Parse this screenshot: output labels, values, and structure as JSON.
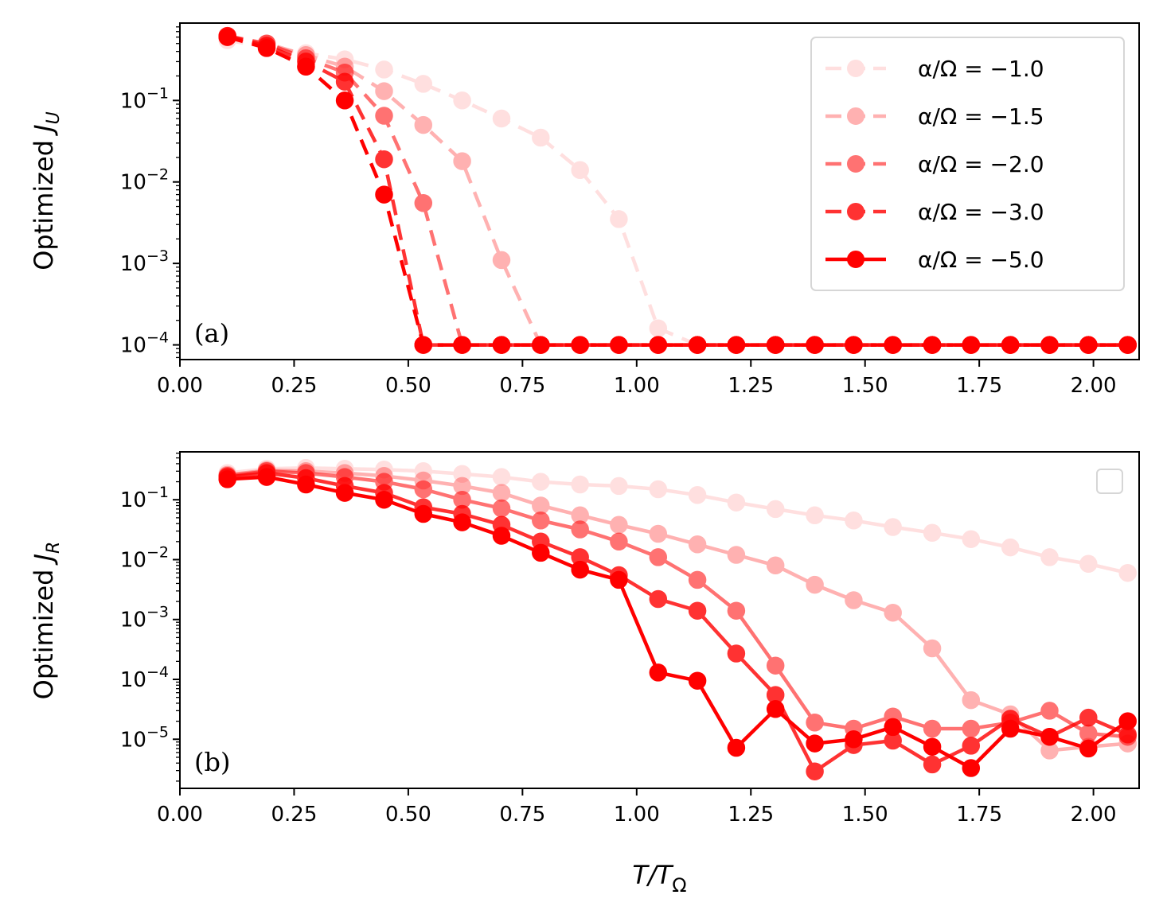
{
  "chart_data": [
    {
      "type": "line",
      "panel_label": "(a)",
      "ylabel": "Optimized",
      "ylabel_sub": "U",
      "xlabel": "",
      "xlim": [
        0.0,
        2.1
      ],
      "ylim_log10": [
        -4.18,
        -0.05
      ],
      "y_scale": "log",
      "x_ticks": [
        "0.00",
        "0.25",
        "0.50",
        "0.75",
        "1.00",
        "1.25",
        "1.50",
        "1.75",
        "2.00"
      ],
      "y_ticks": [
        {
          "value": -4,
          "base": "10",
          "exp": "−4"
        },
        {
          "value": -3,
          "base": "10",
          "exp": "−3"
        },
        {
          "value": -2,
          "base": "10",
          "exp": "−2"
        },
        {
          "value": -1,
          "base": "10",
          "exp": "−1"
        }
      ],
      "linestyle": "dashed",
      "legend": {
        "placement": "top-right"
      },
      "x": [
        0.104,
        0.19,
        0.276,
        0.361,
        0.447,
        0.533,
        0.618,
        0.704,
        0.79,
        0.876,
        0.961,
        1.047,
        1.133,
        1.218,
        1.304,
        1.39,
        1.475,
        1.561,
        1.647,
        1.732,
        1.818,
        1.904,
        1.989,
        2.075
      ],
      "series": [
        {
          "name": "α/Ω = −1.0",
          "color": "#ff0000",
          "opacity": 0.12,
          "values": [
            0.55,
            0.45,
            0.38,
            0.32,
            0.24,
            0.16,
            0.1,
            0.06,
            0.035,
            0.014,
            0.0035,
            0.00016,
            0.0001,
            0.0001,
            0.0001,
            0.0001,
            0.0001,
            0.0001,
            0.0001,
            0.0001,
            0.0001,
            0.0001,
            0.0001,
            0.0001
          ]
        },
        {
          "name": "α/Ω = −1.5",
          "color": "#ff0000",
          "opacity": 0.3,
          "values": [
            0.6,
            0.5,
            0.36,
            0.26,
            0.13,
            0.05,
            0.018,
            0.0011,
            0.0001,
            0.0001,
            0.0001,
            0.0001,
            0.0001,
            0.0001,
            0.0001,
            0.0001,
            0.0001,
            0.0001,
            0.0001,
            0.0001,
            0.0001,
            0.0001,
            0.0001,
            0.0001
          ]
        },
        {
          "name": "α/Ω = −2.0",
          "color": "#ff0000",
          "opacity": 0.55,
          "values": [
            0.62,
            0.5,
            0.33,
            0.22,
            0.065,
            0.0055,
            0.0001,
            0.0001,
            0.0001,
            0.0001,
            0.0001,
            0.0001,
            0.0001,
            0.0001,
            0.0001,
            0.0001,
            0.0001,
            0.0001,
            0.0001,
            0.0001,
            0.0001,
            0.0001,
            0.0001,
            0.0001
          ]
        },
        {
          "name": "α/Ω = −3.0",
          "color": "#ff0000",
          "opacity": 0.8,
          "values": [
            0.62,
            0.47,
            0.3,
            0.17,
            0.019,
            0.0001,
            0.0001,
            0.0001,
            0.0001,
            0.0001,
            0.0001,
            0.0001,
            0.0001,
            0.0001,
            0.0001,
            0.0001,
            0.0001,
            0.0001,
            0.0001,
            0.0001,
            0.0001,
            0.0001,
            0.0001,
            0.0001
          ]
        },
        {
          "name": "α/Ω = −5.0",
          "color": "#ff0000",
          "opacity": 1.0,
          "values": [
            0.6,
            0.44,
            0.26,
            0.1,
            0.007,
            0.0001,
            0.0001,
            0.0001,
            0.0001,
            0.0001,
            0.0001,
            0.0001,
            0.0001,
            0.0001,
            0.0001,
            0.0001,
            0.0001,
            0.0001,
            0.0001,
            0.0001,
            0.0001,
            0.0001,
            0.0001,
            0.0001
          ]
        }
      ]
    },
    {
      "type": "line",
      "panel_label": "(b)",
      "ylabel": "Optimized",
      "ylabel_sub": "R",
      "xlabel": "T/T",
      "xlabel_sub": "Ω",
      "xlim": [
        0.0,
        2.1
      ],
      "ylim_log10": [
        -5.82,
        -0.2
      ],
      "y_scale": "log",
      "x_ticks": [
        "0.00",
        "0.25",
        "0.50",
        "0.75",
        "1.00",
        "1.25",
        "1.50",
        "1.75",
        "2.00"
      ],
      "y_ticks": [
        {
          "value": -5,
          "base": "10",
          "exp": "−5"
        },
        {
          "value": -4,
          "base": "10",
          "exp": "−4"
        },
        {
          "value": -3,
          "base": "10",
          "exp": "−3"
        },
        {
          "value": -2,
          "base": "10",
          "exp": "−2"
        },
        {
          "value": -1,
          "base": "10",
          "exp": "−1"
        }
      ],
      "linestyle": "solid",
      "legend": {
        "placement": "top-right",
        "empty": true
      },
      "x": [
        0.104,
        0.19,
        0.276,
        0.361,
        0.447,
        0.533,
        0.618,
        0.704,
        0.79,
        0.876,
        0.961,
        1.047,
        1.133,
        1.218,
        1.304,
        1.39,
        1.475,
        1.561,
        1.647,
        1.732,
        1.818,
        1.904,
        1.989,
        2.075
      ],
      "series": [
        {
          "name": "α/Ω = −1.0",
          "color": "#ff0000",
          "opacity": 0.12,
          "values": [
            0.28,
            0.33,
            0.34,
            0.33,
            0.32,
            0.3,
            0.27,
            0.24,
            0.2,
            0.18,
            0.17,
            0.15,
            0.12,
            0.09,
            0.07,
            0.055,
            0.045,
            0.035,
            0.028,
            0.022,
            0.016,
            0.011,
            0.0085,
            0.006
          ]
        },
        {
          "name": "α/Ω = −1.5",
          "color": "#ff0000",
          "opacity": 0.3,
          "values": [
            0.26,
            0.31,
            0.3,
            0.28,
            0.25,
            0.21,
            0.17,
            0.13,
            0.08,
            0.055,
            0.038,
            0.027,
            0.018,
            0.012,
            0.008,
            0.0038,
            0.0021,
            0.0013,
            0.00033,
            4.5e-05,
            2.6e-05,
            6.5e-06,
            7.5e-06,
            8.5e-06
          ]
        },
        {
          "name": "α/Ω = −2.0",
          "color": "#ff0000",
          "opacity": 0.55,
          "values": [
            0.25,
            0.3,
            0.28,
            0.24,
            0.2,
            0.15,
            0.1,
            0.072,
            0.045,
            0.032,
            0.02,
            0.011,
            0.0046,
            0.0014,
            0.00017,
            1.9e-05,
            1.5e-05,
            2.4e-05,
            1.5e-05,
            1.5e-05,
            1.9e-05,
            3e-05,
            1.25e-05,
            1.1e-05
          ]
        },
        {
          "name": "α/Ω = −3.0",
          "color": "#ff0000",
          "opacity": 0.8,
          "values": [
            0.24,
            0.28,
            0.23,
            0.17,
            0.13,
            0.075,
            0.058,
            0.038,
            0.02,
            0.011,
            0.0055,
            0.0022,
            0.0014,
            0.00027,
            5.5e-05,
            2.9e-06,
            8e-06,
            9.5e-06,
            3.8e-06,
            7.8e-06,
            2.2e-05,
            1.1e-05,
            2.3e-05,
            1.2e-05
          ]
        },
        {
          "name": "α/Ω = −5.0",
          "color": "#ff0000",
          "opacity": 1.0,
          "values": [
            0.22,
            0.24,
            0.18,
            0.13,
            0.1,
            0.058,
            0.042,
            0.025,
            0.013,
            0.0068,
            0.0046,
            0.00013,
            9.5e-05,
            7.2e-06,
            3.2e-05,
            8.5e-06,
            1e-05,
            1.6e-05,
            7.5e-06,
            3.3e-06,
            1.5e-05,
            1.1e-05,
            7e-06,
            2e-05
          ]
        }
      ]
    }
  ]
}
